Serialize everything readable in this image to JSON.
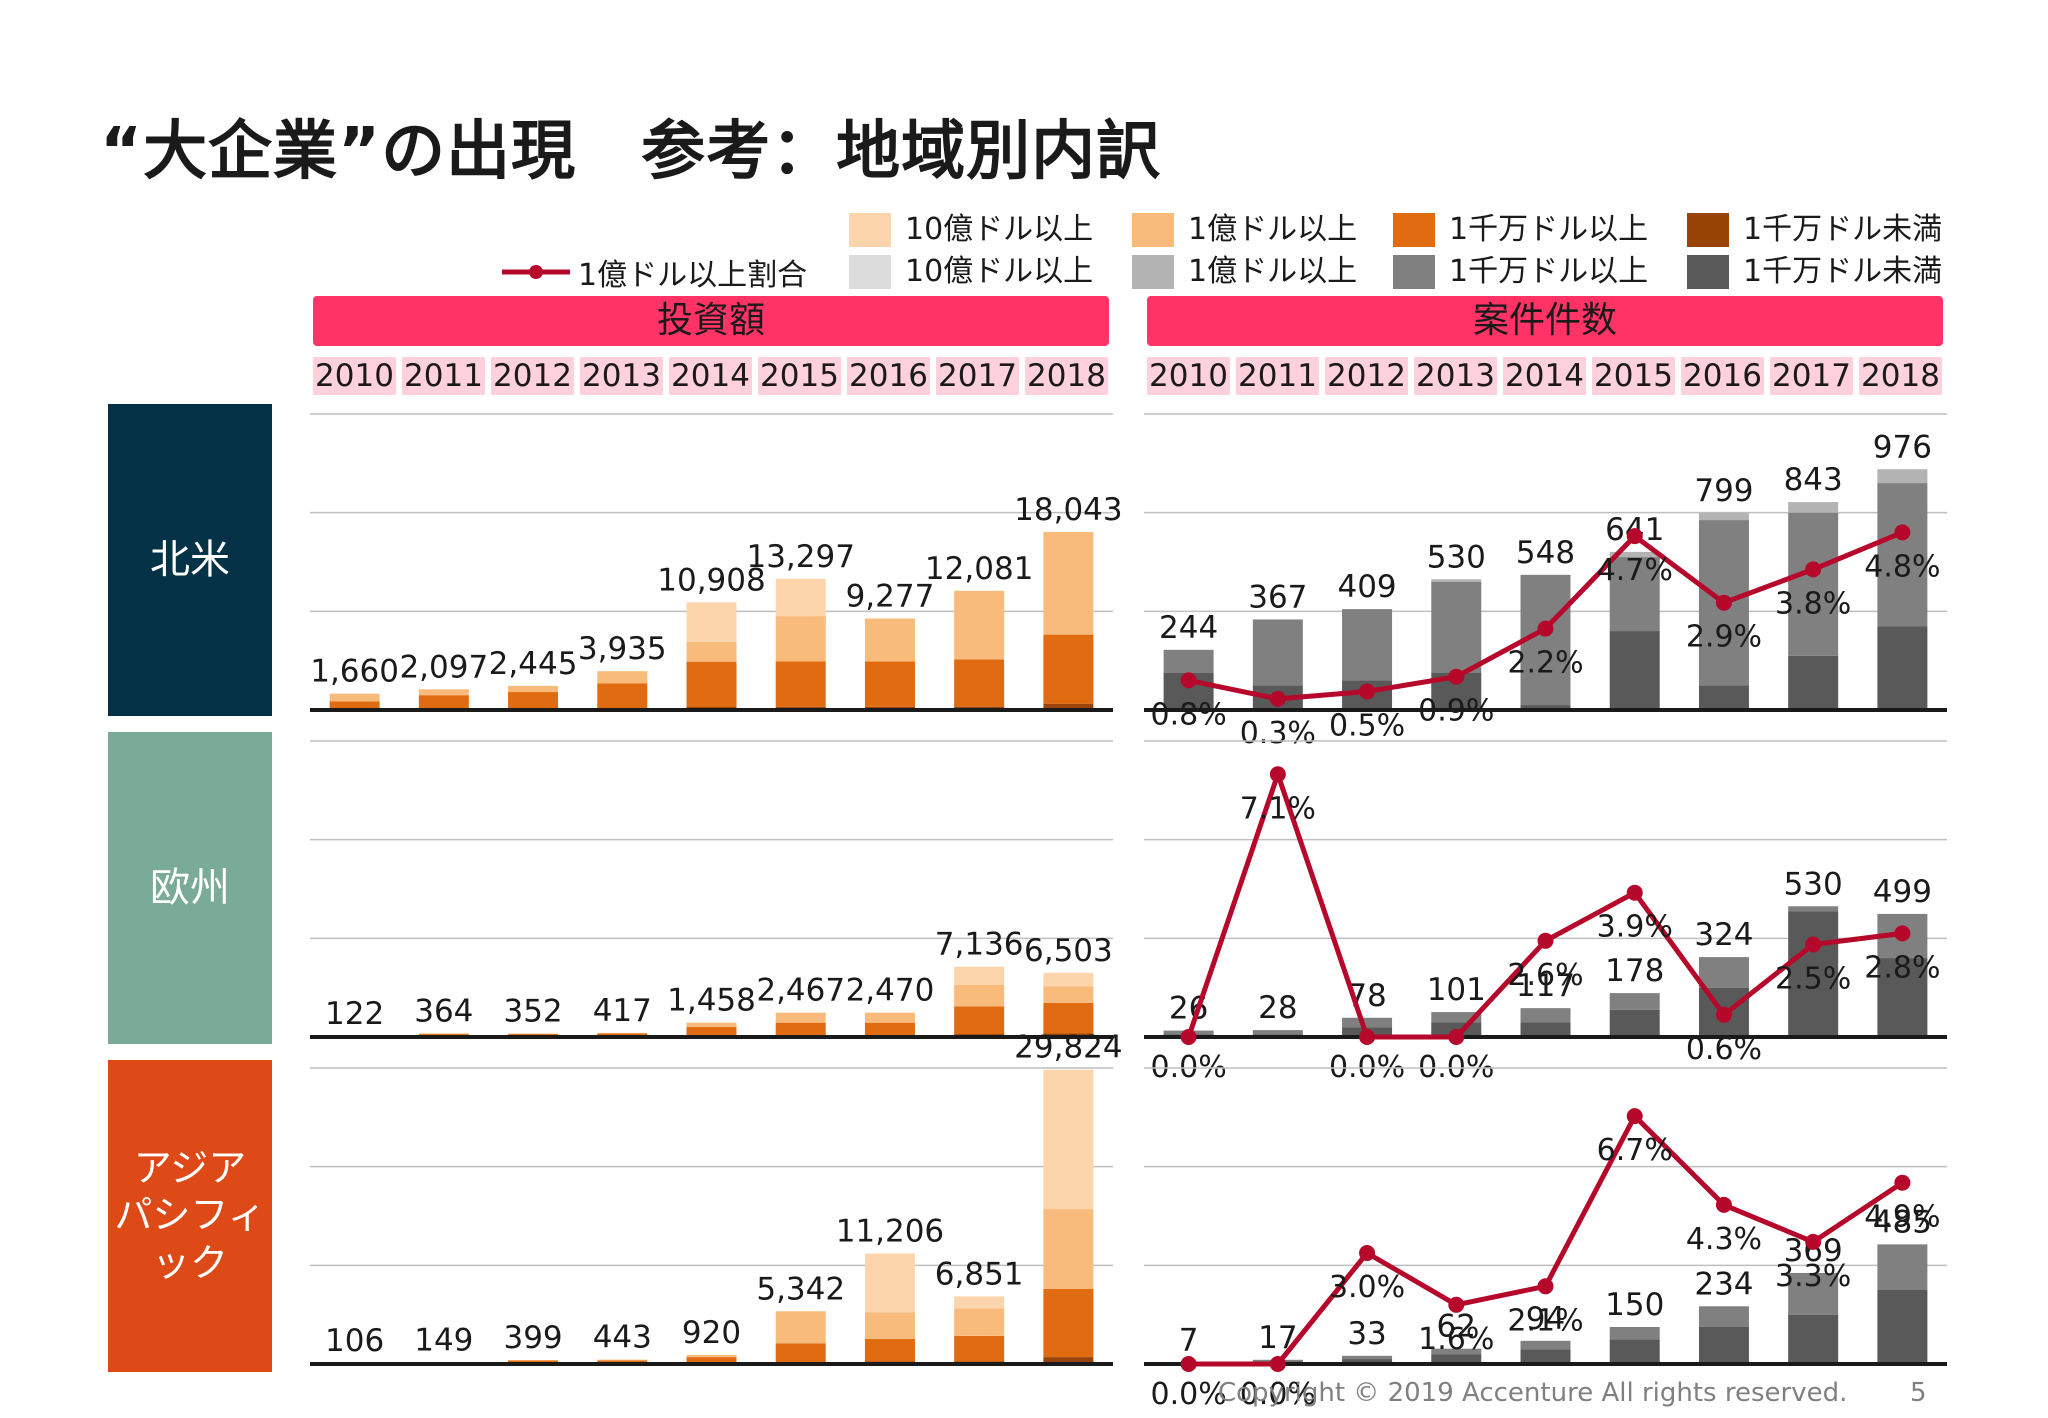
{
  "title": "“大企業”の出現　参考：地域別内訳",
  "legend": {
    "line_label": "1億ドル以上割合",
    "items": [
      {
        "label": "10億ドル以上",
        "color": "#fdd5ad"
      },
      {
        "label": "1億ドル以上",
        "color": "#f9bb7c"
      },
      {
        "label": "1千万ドル以上",
        "color": "#e06b10"
      },
      {
        "label": "1千万ドル未満",
        "color": "#994407"
      },
      {
        "label": "10億ドル以上",
        "color": "#dcdcdc"
      },
      {
        "label": "1億ドル以上",
        "color": "#b3b3b3"
      },
      {
        "label": "1千万ドル以上",
        "color": "#808080"
      },
      {
        "label": "1千万ドル未満",
        "color": "#595959"
      }
    ]
  },
  "sections": {
    "investment": "投資額",
    "deals": "案件件数"
  },
  "years": [
    "2010",
    "2011",
    "2012",
    "2013",
    "2014",
    "2015",
    "2016",
    "2017",
    "2018"
  ],
  "regions": [
    {
      "label": "北米",
      "color": "#053246"
    },
    {
      "label": "欧州",
      "color": "#7aab98"
    },
    {
      "label": "アジア\nパシフィック",
      "color": "#dd4a17"
    }
  ],
  "chart_data": [
    {
      "type": "bar",
      "title": "投資額",
      "region": "北米",
      "categories": [
        "2010",
        "2011",
        "2012",
        "2013",
        "2014",
        "2015",
        "2016",
        "2017",
        "2018"
      ],
      "series": [
        {
          "name": "1千万ドル未満",
          "values": [
            80,
            100,
            120,
            190,
            300,
            320,
            310,
            340,
            640
          ]
        },
        {
          "name": "1千万ドル以上",
          "values": [
            800,
            1400,
            1700,
            2500,
            4600,
            4600,
            4600,
            4800,
            7000
          ]
        },
        {
          "name": "1億ドル以上",
          "values": [
            780,
            597,
            625,
            1245,
            2000,
            4600,
            4367,
            6941,
            10403
          ]
        },
        {
          "name": "10億ドル以上",
          "values": [
            0,
            0,
            0,
            0,
            4008,
            3777,
            0,
            0,
            0
          ]
        }
      ],
      "totals": [
        "1,660",
        "2,097",
        "2,445",
        "3,935",
        "10,908",
        "13,297",
        "9,277",
        "12,081",
        "18,043"
      ],
      "total_values": [
        1660,
        2097,
        2445,
        3935,
        10908,
        13297,
        9277,
        12081,
        18043
      ],
      "ylim": [
        0,
        30000
      ]
    },
    {
      "type": "bar",
      "title": "投資額",
      "region": "欧州",
      "categories": [
        "2010",
        "2011",
        "2012",
        "2013",
        "2014",
        "2015",
        "2016",
        "2017",
        "2018"
      ],
      "series": [
        {
          "name": "1千万ドル未満",
          "values": [
            20,
            50,
            50,
            60,
            120,
            150,
            150,
            300,
            350
          ]
        },
        {
          "name": "1千万ドル以上",
          "values": [
            102,
            250,
            250,
            300,
            900,
            1300,
            1300,
            2800,
            3100
          ]
        },
        {
          "name": "1億ドル以上",
          "values": [
            0,
            64,
            52,
            57,
            438,
            1017,
            1020,
            2200,
            1700
          ]
        },
        {
          "name": "10億ドル以上",
          "values": [
            0,
            0,
            0,
            0,
            0,
            0,
            0,
            1836,
            1353
          ]
        }
      ],
      "totals": [
        "122",
        "364",
        "352",
        "417",
        "1,458",
        "2,467",
        "2,470",
        "7,136",
        "6,503"
      ],
      "total_values": [
        122,
        364,
        352,
        417,
        1458,
        2467,
        2470,
        7136,
        6503
      ],
      "ylim": [
        0,
        30000
      ]
    },
    {
      "type": "bar",
      "title": "投資額",
      "region": "アジアパシフィック",
      "categories": [
        "2010",
        "2011",
        "2012",
        "2013",
        "2014",
        "2015",
        "2016",
        "2017",
        "2018"
      ],
      "series": [
        {
          "name": "1千万ドル未満",
          "values": [
            20,
            30,
            50,
            50,
            100,
            200,
            250,
            250,
            700
          ]
        },
        {
          "name": "1千万ドル以上",
          "values": [
            86,
            119,
            300,
            300,
            600,
            1900,
            2300,
            2600,
            6900
          ]
        },
        {
          "name": "1億ドル以上",
          "values": [
            0,
            0,
            49,
            93,
            220,
            3242,
            2700,
            2800,
            8100
          ]
        },
        {
          "name": "10億ドル以上",
          "values": [
            0,
            0,
            0,
            0,
            0,
            0,
            5956,
            1201,
            14124
          ]
        }
      ],
      "totals": [
        "106",
        "149",
        "399",
        "443",
        "920",
        "5,342",
        "11,206",
        "6,851",
        "29,824"
      ],
      "total_values": [
        106,
        149,
        399,
        443,
        920,
        5342,
        11206,
        6851,
        29824
      ],
      "ylim": [
        0,
        30000
      ]
    },
    {
      "type": "bar",
      "title": "案件件数",
      "region": "北米",
      "categories": [
        "2010",
        "2011",
        "2012",
        "2013",
        "2014",
        "2015",
        "2016",
        "2017",
        "2018"
      ],
      "series": [
        {
          "name": "1千万ドル未満",
          "values": [
            150,
            100,
            120,
            150,
            20,
            320,
            100,
            220,
            340
          ]
        },
        {
          "name": "1千万ドル以上",
          "values": [
            94,
            267,
            289,
            370,
            528,
            300,
            670,
            580,
            580
          ]
        },
        {
          "name": "1億ドル以上",
          "values": [
            0,
            0,
            0,
            10,
            0,
            21,
            29,
            43,
            56
          ]
        }
      ],
      "totals": [
        "244",
        "367",
        "409",
        "530",
        "548",
        "641",
        "799",
        "843",
        "976"
      ],
      "total_values": [
        244,
        367,
        409,
        530,
        548,
        641,
        799,
        843,
        976
      ],
      "line": {
        "name": "1億ドル以上割合",
        "values": [
          0.8,
          0.3,
          0.5,
          0.9,
          2.2,
          4.7,
          2.9,
          3.8,
          4.8
        ],
        "labels": [
          "0.8%",
          "0.3%",
          "0.5%",
          "0.9%",
          "2.2%",
          "4.7%",
          "2.9%",
          "3.8%",
          "4.8%"
        ],
        "ylim": [
          0,
          8
        ]
      },
      "ylim": [
        0,
        1200
      ]
    },
    {
      "type": "bar",
      "title": "案件件数",
      "region": "欧州",
      "categories": [
        "2010",
        "2011",
        "2012",
        "2013",
        "2014",
        "2015",
        "2016",
        "2017",
        "2018"
      ],
      "series": [
        {
          "name": "1千万ドル未満",
          "values": [
            10,
            10,
            40,
            60,
            60,
            110,
            200,
            510,
            320
          ]
        },
        {
          "name": "1千万ドル以上",
          "values": [
            16,
            18,
            38,
            41,
            57,
            68,
            124,
            20,
            179
          ]
        }
      ],
      "totals": [
        "26",
        "28",
        "78",
        "101",
        "117",
        "178",
        "324",
        "530",
        "499"
      ],
      "total_values": [
        26,
        28,
        78,
        101,
        117,
        178,
        324,
        530,
        499
      ],
      "line": {
        "name": "1億ドル以上割合",
        "values": [
          0.0,
          7.1,
          0.0,
          0.0,
          2.6,
          3.9,
          0.6,
          2.5,
          2.8
        ],
        "labels": [
          "0.0%",
          "7.1%",
          "0.0%",
          "0.0%",
          "2.6%",
          "3.9%",
          "0.6%",
          "2.5%",
          "2.8%"
        ],
        "ylim": [
          0,
          8
        ]
      },
      "ylim": [
        0,
        1200
      ]
    },
    {
      "type": "bar",
      "title": "案件件数",
      "region": "アジアパシフィック",
      "categories": [
        "2010",
        "2011",
        "2012",
        "2013",
        "2014",
        "2015",
        "2016",
        "2017",
        "2018"
      ],
      "series": [
        {
          "name": "1千万ドル未満",
          "values": [
            5,
            10,
            20,
            40,
            60,
            100,
            150,
            200,
            300
          ]
        },
        {
          "name": "1千万ドル以上",
          "values": [
            2,
            7,
            13,
            22,
            34,
            50,
            84,
            169,
            185
          ]
        }
      ],
      "totals": [
        "7",
        "17",
        "33",
        "62",
        "94",
        "150",
        "234",
        "369",
        "485"
      ],
      "total_values": [
        7,
        17,
        33,
        62,
        94,
        150,
        234,
        369,
        485
      ],
      "line": {
        "name": "1億ドル以上割合",
        "values": [
          0.0,
          0.0,
          3.0,
          1.6,
          2.1,
          6.7,
          4.3,
          3.3,
          4.9
        ],
        "labels": [
          "0.0%",
          "0.0%",
          "3.0%",
          "1.6%",
          "2.1%",
          "6.7%",
          "4.3%",
          "3.3%",
          "4.9%"
        ],
        "ylim": [
          0,
          8
        ]
      },
      "ylim": [
        0,
        1200
      ]
    }
  ],
  "footer": {
    "copyright": "Copyright © 2019 Accenture  All rights reserved.",
    "page": "5"
  }
}
